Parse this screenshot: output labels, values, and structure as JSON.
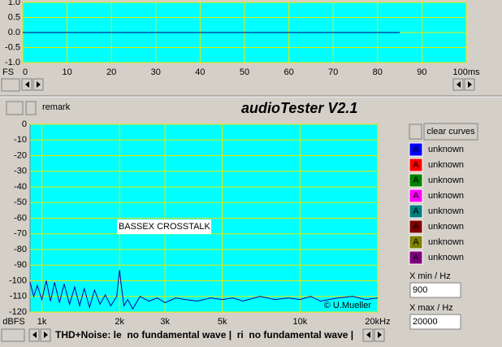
{
  "title": "audioTester V2.1",
  "remark": "remark",
  "chart_data": [
    {
      "type": "line",
      "ylabel": "FS",
      "xlim": [
        0,
        100
      ],
      "ylim": [
        -1,
        1
      ],
      "xticks": [
        0,
        10,
        20,
        30,
        40,
        50,
        60,
        70,
        80,
        90,
        {
          "value": 100,
          "label": "100ms"
        }
      ],
      "yticks": [
        {
          "value": 1,
          "label": "1.0"
        },
        {
          "value": 0.5,
          "label": "0.5"
        },
        {
          "value": 0,
          "label": "0.0"
        },
        {
          "value": -0.5,
          "label": "-0.5"
        },
        {
          "value": -1,
          "label": "-1.0"
        }
      ],
      "grid": true,
      "background": "#00ffff",
      "grid_color": "#e8e800",
      "series": [
        {
          "color": "#000080",
          "x": [
            0,
            85
          ],
          "values": [
            0,
            0
          ]
        }
      ]
    },
    {
      "type": "line",
      "ylabel": "dBFS",
      "xscale": "log",
      "xlim": [
        900,
        20000
      ],
      "ylim": [
        -120,
        0
      ],
      "xticks": [
        {
          "value": 1000,
          "label": "1k"
        },
        {
          "value": 2000,
          "label": "2k"
        },
        {
          "value": 3000,
          "label": "3k"
        },
        {
          "value": 5000,
          "label": "5k"
        },
        {
          "value": 10000,
          "label": "10k"
        },
        {
          "value": 20000,
          "label": "20kHz"
        }
      ],
      "yticks": [
        0,
        -10,
        -20,
        -30,
        -40,
        -50,
        -60,
        -70,
        -80,
        -90,
        -100,
        -110,
        -120
      ],
      "grid": true,
      "background": "#00ffff",
      "grid_color": "#e8e800",
      "annotations": [
        "BASSEX CROSSTALK",
        "© U.Mueller"
      ],
      "series": [
        {
          "color": "#0000a0",
          "x": [
            900,
            930,
            960,
            1000,
            1040,
            1080,
            1120,
            1170,
            1220,
            1280,
            1340,
            1400,
            1460,
            1530,
            1600,
            1680,
            1760,
            1850,
            1950,
            2000,
            2030,
            2080,
            2150,
            2250,
            2400,
            2600,
            2800,
            3000,
            3300,
            3600,
            4000,
            4500,
            5000,
            5500,
            6000,
            7000,
            8000,
            9000,
            10000,
            11000,
            12000,
            14000,
            16000,
            18000,
            20000
          ],
          "values": [
            -101,
            -110,
            -103,
            -112,
            -100,
            -113,
            -101,
            -114,
            -102,
            -115,
            -104,
            -116,
            -105,
            -117,
            -106,
            -115,
            -109,
            -116,
            -110,
            -93,
            -103,
            -116,
            -112,
            -118,
            -110,
            -113,
            -111,
            -114,
            -111,
            -112,
            -113,
            -111,
            -112,
            -111,
            -113,
            -110,
            -112,
            -111,
            -112,
            -110,
            -113,
            -111,
            -110,
            -112,
            -111
          ]
        }
      ]
    }
  ],
  "legend": {
    "button": "clear curves",
    "curves": [
      {
        "letter": "A",
        "label": "unknown",
        "color": "#0000ff"
      },
      {
        "letter": "A",
        "label": "unknown",
        "color": "#ff0000"
      },
      {
        "letter": "A",
        "label": "unknown",
        "color": "#008000"
      },
      {
        "letter": "A",
        "label": "unknown",
        "color": "#ff00ff"
      },
      {
        "letter": "A",
        "label": "unknown",
        "color": "#008080"
      },
      {
        "letter": "A",
        "label": "unknown",
        "color": "#800000"
      },
      {
        "letter": "A",
        "label": "unknown",
        "color": "#808000"
      },
      {
        "letter": "A",
        "label": "unknown",
        "color": "#800080"
      }
    ]
  },
  "x_min": {
    "label": "X min / Hz",
    "value": 900
  },
  "x_max": {
    "label": "X max / Hz",
    "value": 20000
  },
  "status": "THD+Noise: le  no fundamental wave |  ri  no fundamental wave |"
}
